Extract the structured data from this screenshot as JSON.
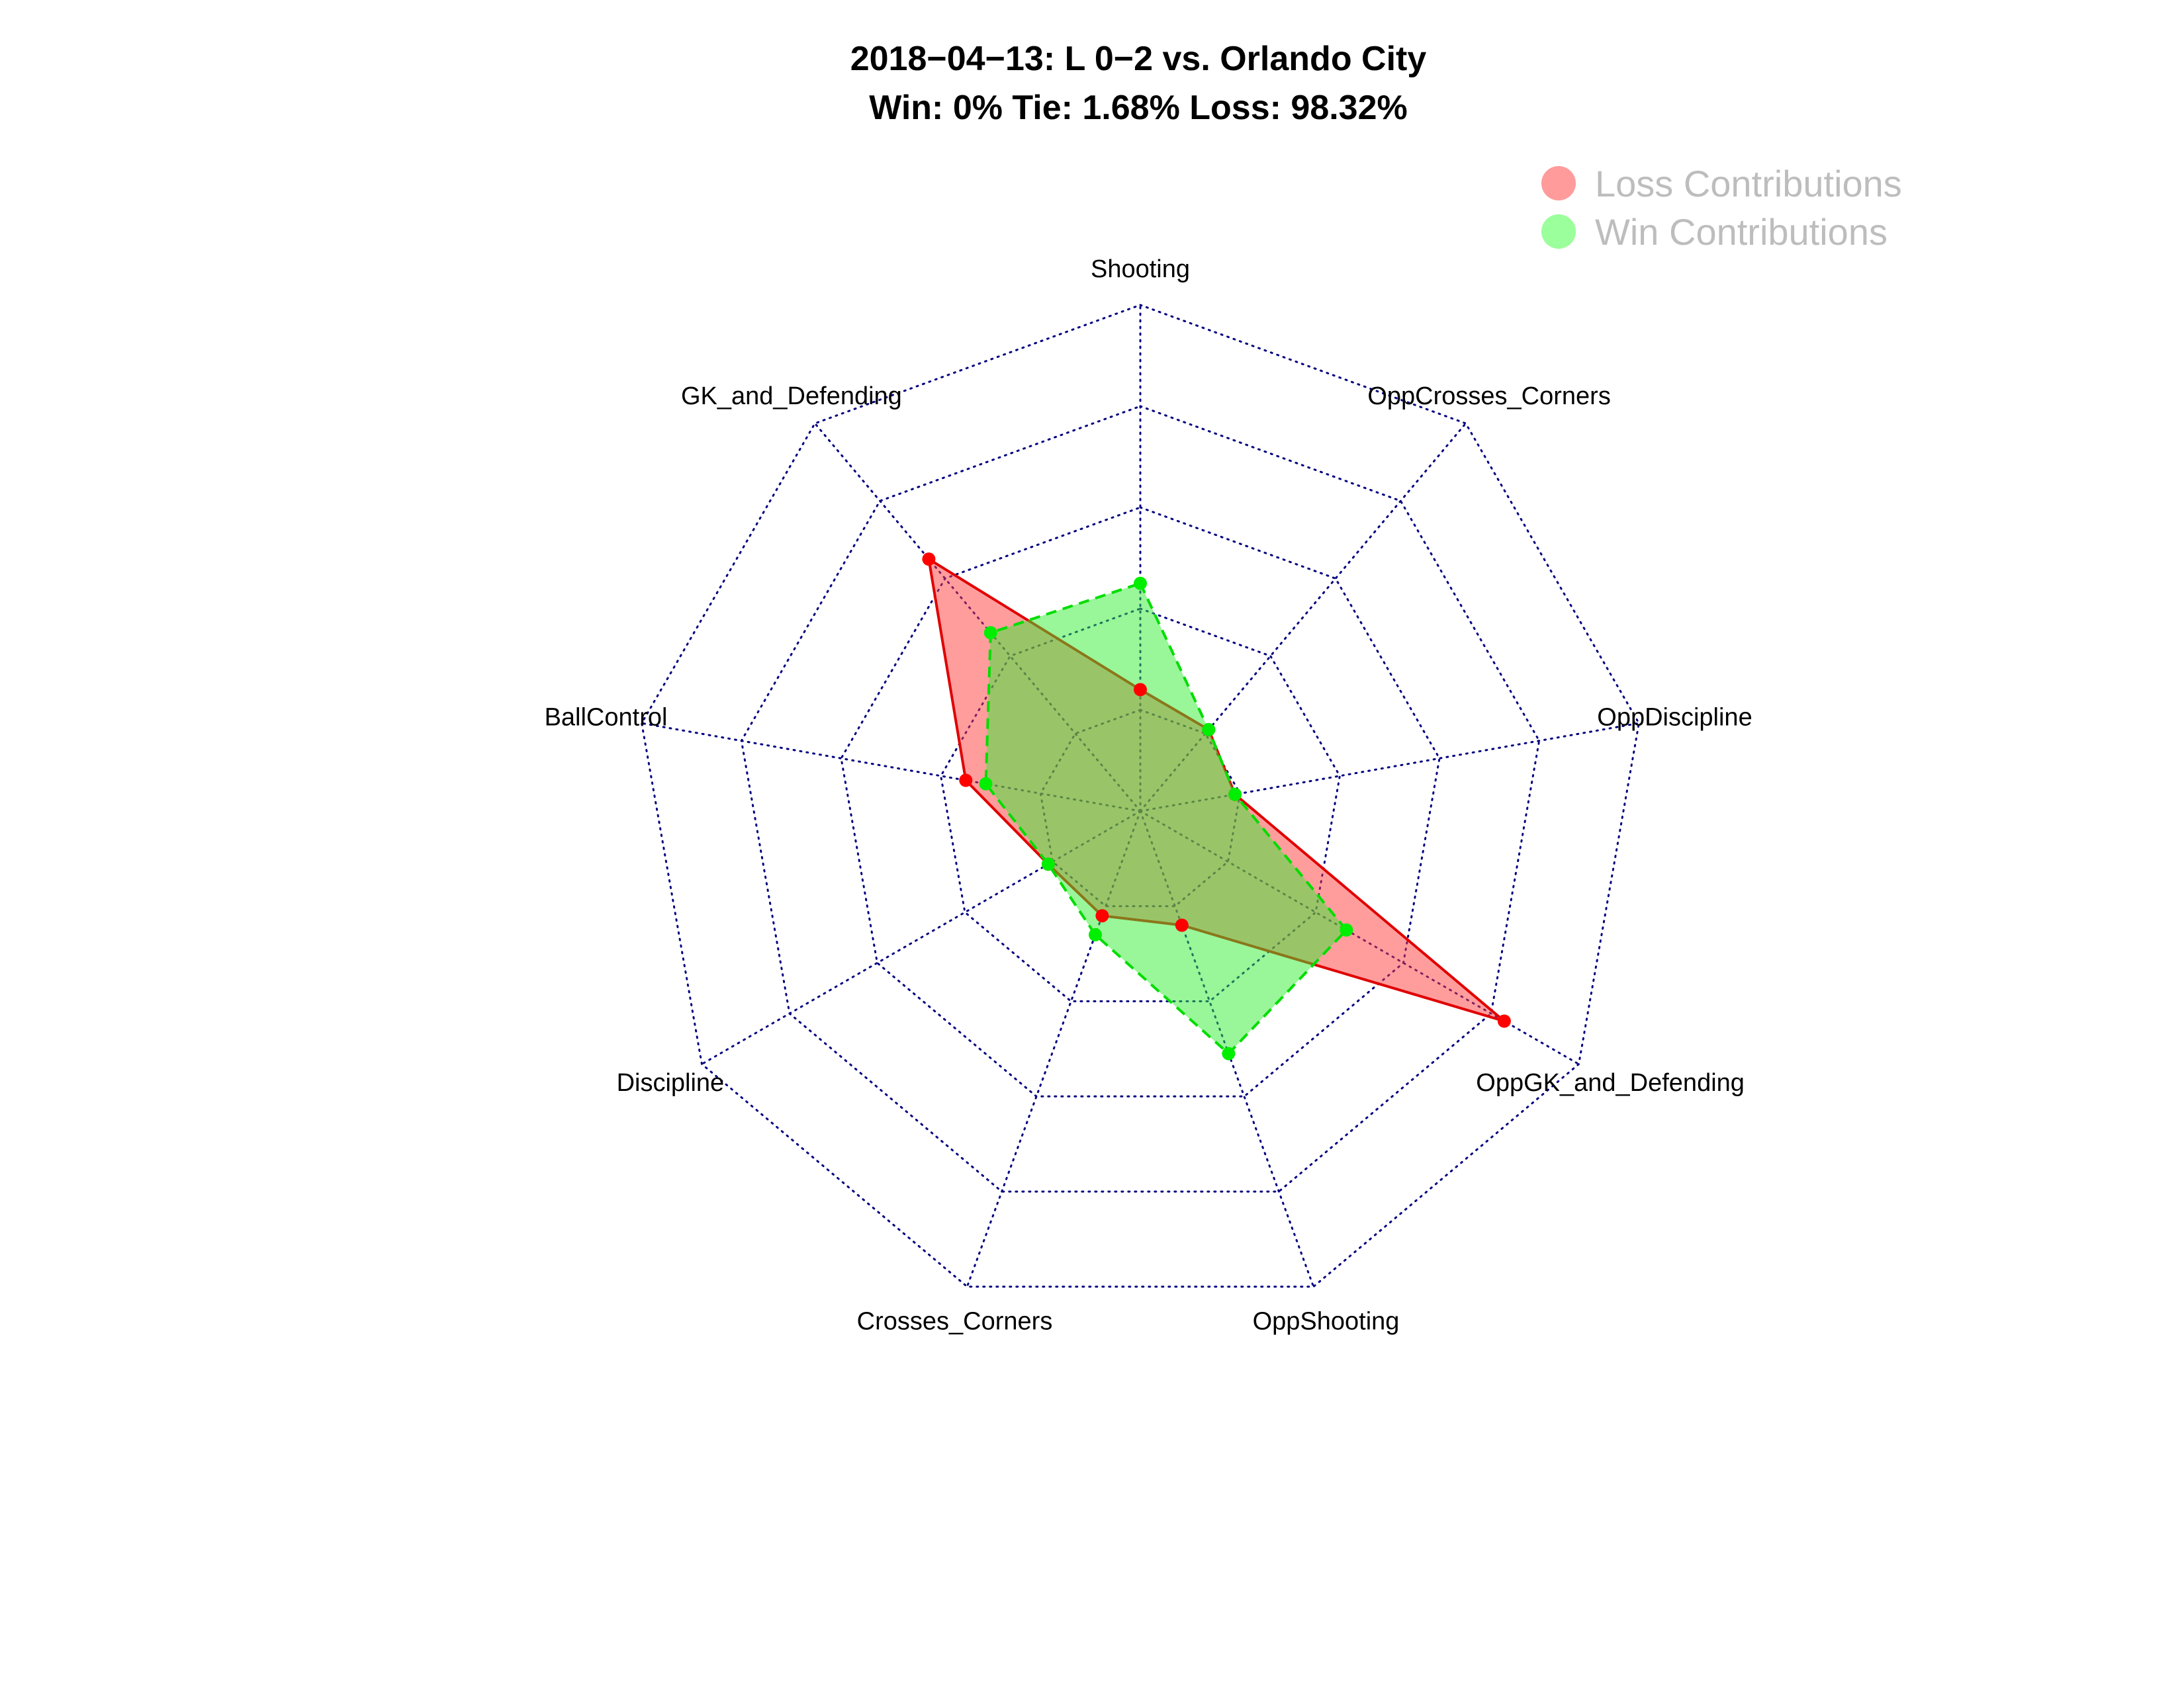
{
  "chart_data": {
    "type": "radar",
    "title": "2018−04−13:  L 0−2   vs. Orlando City",
    "subtitle": "Win: 0% Tie: 1.68% Loss: 98.32%",
    "categories": [
      "Shooting",
      "OppCrosses_Corners",
      "OppDiscipline",
      "OppGK_and_Defending",
      "OppShooting",
      "Crosses_Corners",
      "Discipline",
      "BallControl",
      "GK_and_Defending"
    ],
    "rlim": [
      0,
      1
    ],
    "grid_levels": 5,
    "series": [
      {
        "name": "Loss Contributions",
        "values": [
          0.24,
          0.21,
          0.19,
          0.83,
          0.24,
          0.22,
          0.21,
          0.35,
          0.65
        ]
      },
      {
        "name": "Win Contributions",
        "values": [
          0.45,
          0.21,
          0.19,
          0.47,
          0.51,
          0.26,
          0.21,
          0.31,
          0.46
        ]
      }
    ],
    "legend_position": "top-right",
    "colors": {
      "loss_fill": "#ff3b3b",
      "loss_line": "#e00000",
      "loss_point": "#ff0000",
      "win_fill": "#33ee33",
      "win_line": "#00dd00",
      "win_point": "#00ee00",
      "grid": "#000080"
    }
  }
}
